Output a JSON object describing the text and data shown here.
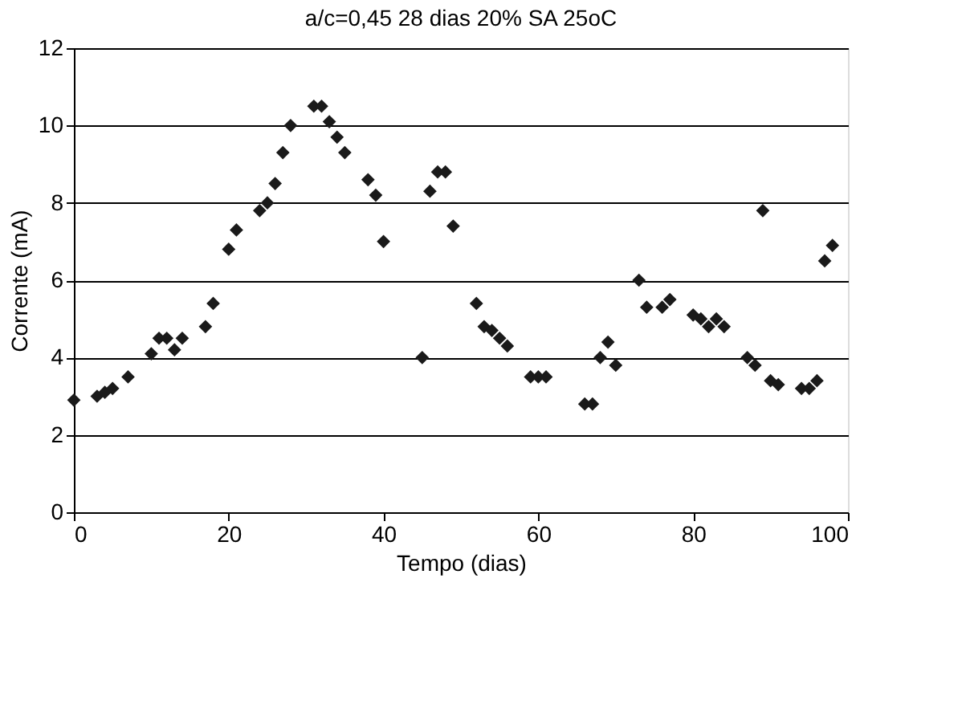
{
  "chart_data": {
    "type": "scatter",
    "title": "a/c=0,45 28 dias 20% SA 25oC",
    "xlabel": "Tempo (dias)",
    "ylabel": "Corrente (mA)",
    "x": [
      0,
      3,
      4,
      5,
      7,
      10,
      11,
      12,
      13,
      14,
      17,
      18,
      20,
      21,
      24,
      25,
      26,
      27,
      28,
      31,
      32,
      33,
      34,
      35,
      38,
      39,
      40,
      45,
      46,
      47,
      48,
      49,
      52,
      53,
      54,
      55,
      56,
      59,
      60,
      61,
      66,
      67,
      68,
      69,
      70,
      73,
      74,
      76,
      77,
      80,
      81,
      82,
      83,
      84,
      87,
      88,
      89,
      90,
      91,
      94,
      95,
      96,
      97,
      98
    ],
    "series": [
      {
        "color": "#1a1a1a",
        "values": [
          2.9,
          3.0,
          3.1,
          3.2,
          3.5,
          4.1,
          4.5,
          4.5,
          4.2,
          4.5,
          4.8,
          5.4,
          6.8,
          7.3,
          7.8,
          8.0,
          8.5,
          9.3,
          10.0,
          10.5,
          10.5,
          10.1,
          9.7,
          9.3,
          8.6,
          8.2,
          7.0,
          4.0,
          8.3,
          8.8,
          8.8,
          7.4,
          5.4,
          4.8,
          4.7,
          4.5,
          4.3,
          3.5,
          3.5,
          3.5,
          2.8,
          2.8,
          4.0,
          4.4,
          3.8,
          6.0,
          5.3,
          5.3,
          5.5,
          5.1,
          5.0,
          4.8,
          5.0,
          4.8,
          4.0,
          3.8,
          7.8,
          3.4,
          3.3,
          3.2,
          3.2,
          3.4,
          6.5,
          6.9
        ]
      }
    ],
    "xlim": [
      0,
      100
    ],
    "xticks": [
      0,
      20,
      40,
      60,
      80,
      100
    ],
    "ylim": [
      0,
      12
    ],
    "yticks": [
      0,
      2,
      4,
      6,
      8,
      10,
      12
    ],
    "grid": "y",
    "marker": "diamond",
    "legend": false
  }
}
